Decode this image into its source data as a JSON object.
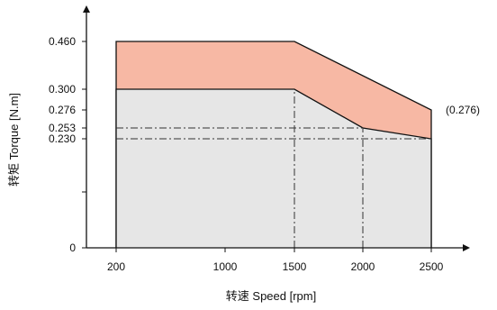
{
  "chart_data": {
    "type": "area",
    "xlabel": "转速 Speed [rpm]",
    "ylabel": "转矩 Torque [N.m]",
    "x_ticks": [
      {
        "value": 200,
        "label": "200"
      },
      {
        "value": 1000,
        "label": "1000"
      },
      {
        "value": 1500,
        "label": "1500"
      },
      {
        "value": 2000,
        "label": "2000"
      },
      {
        "value": 2500,
        "label": "2500"
      }
    ],
    "y_ticks": [
      {
        "value": 0,
        "label": "0"
      },
      {
        "value": 0.115,
        "label": ""
      },
      {
        "value": 0.23,
        "label": "0.230"
      },
      {
        "value": 0.253,
        "label": "0.253"
      },
      {
        "value": 0.276,
        "label": "0.276"
      },
      {
        "value": 0.3,
        "label": "0.300"
      },
      {
        "value": 0.46,
        "label": "0.460"
      }
    ],
    "series": [
      {
        "points": [
          [
            200,
            0.3
          ],
          [
            1500,
            0.3
          ],
          [
            2000,
            0.253
          ],
          [
            2500,
            0.23
          ]
        ],
        "fill": "#e6e6e6"
      },
      {
        "points": [
          [
            200,
            0.46
          ],
          [
            1500,
            0.46
          ],
          [
            2500,
            0.276
          ]
        ],
        "fill": "#f7b8a4"
      }
    ],
    "reference_lines": [
      {
        "from": [
          1500,
          0
        ],
        "to": [
          1500,
          0.3
        ]
      },
      {
        "from": [
          2000,
          0
        ],
        "to": [
          2000,
          0.253
        ]
      },
      {
        "from": [
          200,
          0.253
        ],
        "to": [
          2000,
          0.253
        ]
      },
      {
        "from": [
          200,
          0.23
        ],
        "to": [
          2500,
          0.23
        ]
      }
    ],
    "annotations": [
      {
        "x": 2500,
        "y": 0.276,
        "text": "(0.276)"
      }
    ]
  }
}
